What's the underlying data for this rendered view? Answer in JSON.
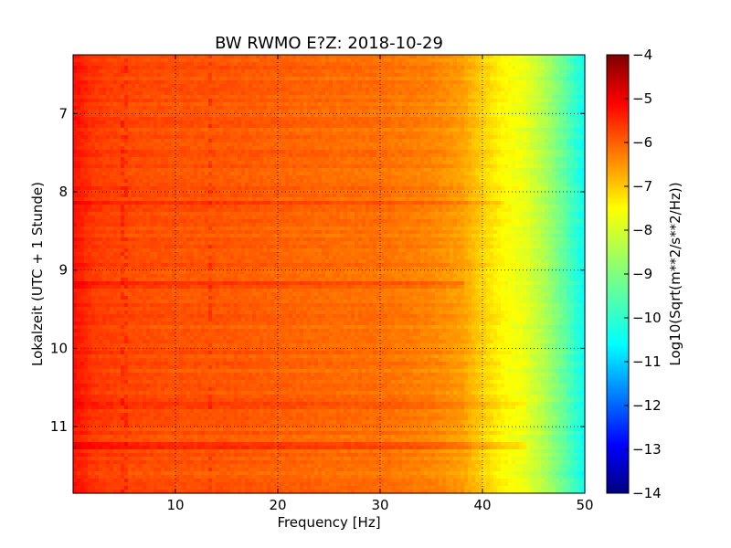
{
  "chart_data": {
    "type": "heatmap",
    "title": "BW RWMO E?Z: 2018-10-29",
    "xlabel": "Frequency [Hz]",
    "ylabel": "Lokalzeit (UTC + 1 Stunde)",
    "xlim": [
      0,
      50
    ],
    "ylim": [
      6.25,
      11.85
    ],
    "y_inverted": true,
    "x_ticks": [
      10,
      20,
      30,
      40,
      50
    ],
    "y_ticks": [
      7,
      8,
      9,
      10,
      11
    ],
    "grid": true,
    "colormap": "jet",
    "colorbar": {
      "label": "Log10(Sqrt(m**2/s**2/Hz))",
      "range": [
        -14,
        -4
      ],
      "ticks": [
        -4,
        -5,
        -6,
        -7,
        -8,
        -9,
        -10,
        -11,
        -12,
        -13,
        -14
      ]
    },
    "frequency_profile_hz": [
      0,
      2,
      5,
      10,
      15,
      20,
      25,
      30,
      35,
      38,
      40,
      42,
      44,
      46,
      48,
      50
    ],
    "frequency_profile_log10": [
      -5.4,
      -5.8,
      -5.95,
      -6.05,
      -6.1,
      -6.2,
      -6.3,
      -6.35,
      -6.55,
      -6.8,
      -7.3,
      -7.7,
      -7.95,
      -8.5,
      -9.3,
      -10.2
    ],
    "horizontal_bands": [
      {
        "hour": 8.14,
        "log10_delta": 0.35,
        "fmax": 42
      },
      {
        "hour": 9.19,
        "log10_delta": 0.3,
        "fmax": 38
      },
      {
        "hour": 10.72,
        "log10_delta": 0.3,
        "fmax": 44
      },
      {
        "hour": 11.22,
        "log10_delta": 0.4,
        "fmax": 44
      }
    ],
    "vertical_features_hz": [
      5,
      13.5
    ]
  }
}
